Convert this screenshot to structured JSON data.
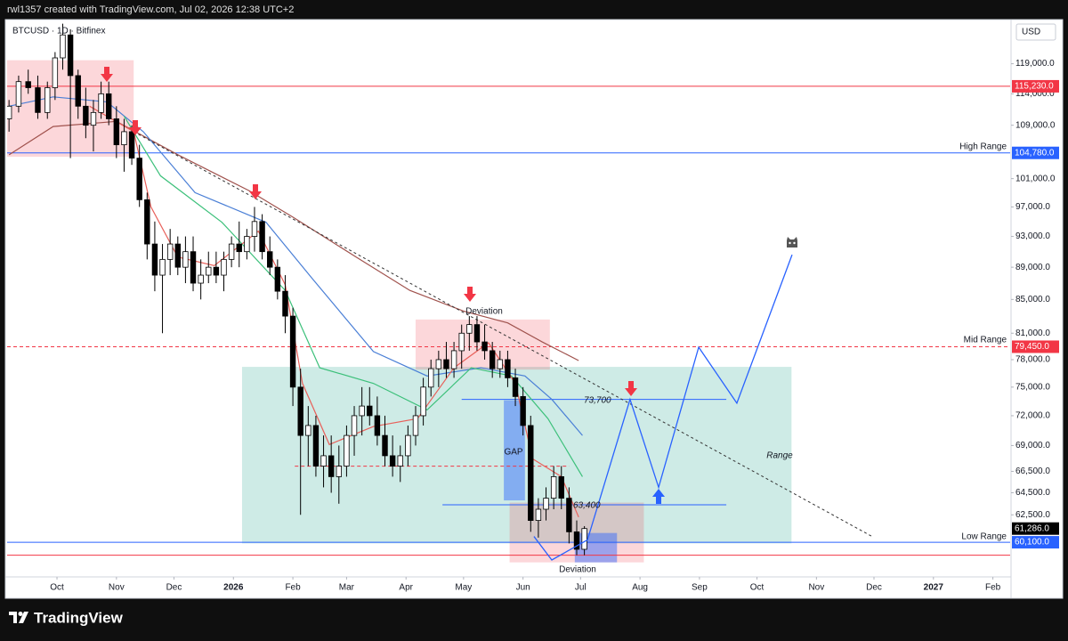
{
  "header": {
    "author_line": "rwl1357 created with TradingView.com, Jul 02, 2026 12:38 UTC+2"
  },
  "footer": {
    "brand": "TradingView"
  },
  "chart_data": {
    "type": "candlestick",
    "symbol": "BTCUSD · 1D · Bitfinex",
    "currency": "USD",
    "log_scale": true,
    "grid": false,
    "ylim": [
      57200,
      126100
    ],
    "yticks": [
      {
        "value": 62500,
        "label": "62,500.0"
      },
      {
        "value": 64500,
        "label": "64,500.0"
      },
      {
        "value": 66500,
        "label": "66,500.0"
      },
      {
        "value": 69000,
        "label": "69,000.0"
      },
      {
        "value": 72000,
        "label": "72,000.0"
      },
      {
        "value": 75000,
        "label": "75,000.0"
      },
      {
        "value": 78000,
        "label": "78,000.0"
      },
      {
        "value": 81000,
        "label": "81,000.0"
      },
      {
        "value": 85000,
        "label": "85,000.0"
      },
      {
        "value": 89000,
        "label": "89,000.0"
      },
      {
        "value": 93000,
        "label": "93,000.0"
      },
      {
        "value": 97000,
        "label": "97,000.0"
      },
      {
        "value": 101000,
        "label": "101,000.0"
      },
      {
        "value": 109000,
        "label": "109,000.0"
      },
      {
        "value": 114000,
        "label": "114,000.0"
      },
      {
        "value": 119000,
        "label": "119,000.0"
      }
    ],
    "xlim": [
      -26,
      497
    ],
    "xticks": [
      {
        "value": 0,
        "label": "Oct"
      },
      {
        "value": 31,
        "label": "Nov"
      },
      {
        "value": 61,
        "label": "Dec"
      },
      {
        "value": 92,
        "label": "2026"
      },
      {
        "value": 123,
        "label": "Feb"
      },
      {
        "value": 151,
        "label": "Mar"
      },
      {
        "value": 182,
        "label": "Apr"
      },
      {
        "value": 212,
        "label": "May"
      },
      {
        "value": 243,
        "label": "Jun"
      },
      {
        "value": 273,
        "label": "Jul"
      },
      {
        "value": 304,
        "label": "Aug"
      },
      {
        "value": 335,
        "label": "Sep"
      },
      {
        "value": 365,
        "label": "Oct"
      },
      {
        "value": 396,
        "label": "Nov"
      },
      {
        "value": 426,
        "label": "Dec"
      },
      {
        "value": 457,
        "label": "2027"
      },
      {
        "value": 488,
        "label": "Feb"
      }
    ],
    "x": [
      -25,
      -20,
      -15,
      -10,
      -5,
      -1,
      3,
      7,
      11,
      15,
      19,
      23,
      27,
      31,
      35,
      39,
      43,
      47,
      51,
      55,
      59,
      63,
      67,
      71,
      75,
      79,
      83,
      87,
      91,
      95,
      99,
      103,
      107,
      111,
      115,
      119,
      123,
      127,
      131,
      135,
      139,
      143,
      147,
      151,
      155,
      159,
      163,
      167,
      171,
      175,
      179,
      183,
      187,
      191,
      195,
      199,
      203,
      207,
      211,
      215,
      219,
      223,
      227,
      231,
      235,
      239,
      243,
      247,
      251,
      255,
      259,
      263,
      267,
      271,
      275
    ],
    "open": [
      110000,
      112000,
      116000,
      115000,
      111000,
      115000,
      120000,
      124000,
      117000,
      112000,
      109000,
      111000,
      114000,
      110000,
      106000,
      108000,
      104000,
      98000,
      92000,
      88000,
      90000,
      92000,
      89000,
      91000,
      87000,
      88000,
      89000,
      88000,
      90000,
      92000,
      91000,
      93000,
      95000,
      91000,
      89000,
      86000,
      83000,
      75000,
      70000,
      71000,
      67000,
      68000,
      66000,
      67000,
      70000,
      72000,
      73000,
      72000,
      70000,
      68000,
      67000,
      68000,
      70000,
      72000,
      75000,
      77000,
      78000,
      77000,
      79000,
      81000,
      82000,
      80000,
      79000,
      77000,
      78000,
      76000,
      74000,
      71000,
      62000,
      63000,
      64000,
      66000,
      64000,
      61000,
      59500
    ],
    "high": [
      113000,
      117000,
      118000,
      117000,
      116000,
      121000,
      126000,
      125000,
      118000,
      115000,
      113000,
      116000,
      116000,
      112000,
      110000,
      109000,
      106000,
      99000,
      95000,
      92000,
      94000,
      93000,
      93000,
      93000,
      90000,
      91000,
      91000,
      91000,
      93000,
      95000,
      94000,
      97000,
      96000,
      93000,
      90000,
      88000,
      84000,
      77000,
      73000,
      72000,
      70000,
      70000,
      69000,
      71000,
      73000,
      75000,
      75000,
      74000,
      72000,
      70000,
      69000,
      71000,
      73000,
      76000,
      78000,
      79000,
      80000,
      80000,
      82000,
      83000,
      83000,
      82000,
      80000,
      79000,
      79000,
      77000,
      75000,
      72000,
      64000,
      65000,
      67000,
      67000,
      65000,
      62000,
      61500
    ],
    "low": [
      108000,
      111000,
      114000,
      110000,
      110000,
      113000,
      118000,
      104000,
      110000,
      107000,
      105000,
      110000,
      109000,
      104000,
      102000,
      103000,
      97000,
      90000,
      86000,
      81000,
      88000,
      88000,
      87000,
      86000,
      85000,
      87000,
      87000,
      86000,
      89000,
      89000,
      90000,
      91000,
      90000,
      88000,
      85000,
      81000,
      73000,
      62500,
      67000,
      66000,
      65000,
      64500,
      63500,
      66000,
      68000,
      70000,
      71000,
      69000,
      67000,
      66000,
      65500,
      67000,
      69000,
      71000,
      74000,
      75000,
      76000,
      76000,
      77000,
      79000,
      79000,
      78000,
      76000,
      76000,
      75000,
      73000,
      70000,
      61000,
      60500,
      62000,
      63000,
      63000,
      60000,
      59000,
      59000
    ],
    "close": [
      112000,
      116000,
      115000,
      111000,
      115000,
      120000,
      124000,
      117000,
      112000,
      109000,
      111000,
      114000,
      110000,
      106000,
      108000,
      104000,
      98000,
      92000,
      88000,
      90000,
      92000,
      89000,
      91000,
      87000,
      88000,
      89000,
      88000,
      90000,
      92000,
      91000,
      93000,
      95000,
      91000,
      89000,
      86000,
      83000,
      75000,
      70000,
      71000,
      67000,
      68000,
      66000,
      67000,
      70000,
      72000,
      73000,
      72000,
      70000,
      68000,
      67000,
      68000,
      70000,
      72000,
      75000,
      77000,
      78000,
      77000,
      79000,
      81000,
      82000,
      80000,
      79000,
      77000,
      78000,
      76000,
      74000,
      71000,
      62000,
      63000,
      64000,
      66000,
      64000,
      61000,
      59500,
      61286
    ],
    "up_color": "#ffffff",
    "down_color": "#000000",
    "wick_color": "#000000",
    "last_price": {
      "value": 61286,
      "label": "61,286.0",
      "color": "#000000"
    },
    "moving_averages": [
      {
        "color": "#a0524d",
        "x": [
          -25,
          -2,
          31,
          63,
          100,
          123,
          156,
          184,
          212,
          235,
          253,
          272
        ],
        "values": [
          104500,
          108800,
          109600,
          104500,
          99300,
          95600,
          90300,
          86100,
          83600,
          82200,
          80000,
          77900
        ]
      },
      {
        "color": "#4a7fd6",
        "x": [
          -25,
          -2,
          26,
          45,
          72,
          109,
          133,
          165,
          193,
          221,
          244,
          258,
          274
        ],
        "values": [
          112000,
          113500,
          112700,
          108000,
          99000,
          94900,
          87600,
          78900,
          76200,
          77100,
          76200,
          73700,
          70000
        ]
      },
      {
        "color": "#3cc07a",
        "x": [
          35,
          54,
          86,
          119,
          137,
          165,
          193,
          216,
          237,
          256,
          274
        ],
        "values": [
          110400,
          101400,
          94900,
          86100,
          77100,
          75400,
          72600,
          77100,
          76200,
          71700,
          66000
        ]
      },
      {
        "color": "#e8605a",
        "x": [
          17,
          40,
          49,
          63,
          82,
          105,
          119,
          128,
          142,
          165,
          188,
          207,
          225,
          239,
          248,
          263,
          272
        ],
        "values": [
          112000,
          108000,
          97000,
          90300,
          89200,
          93700,
          86800,
          75400,
          69100,
          70900,
          71700,
          77100,
          79900,
          75400,
          67700,
          66000,
          62300
        ]
      }
    ],
    "levels": [
      {
        "value": 115230,
        "label": "115,230.0",
        "color": "#f23645"
      },
      {
        "value": 104780,
        "label": "104,780.0",
        "color": "#2962ff",
        "name": "High Range"
      },
      {
        "value": 79450,
        "label": "79,450.0",
        "color": "#f23645",
        "dashed": true,
        "name": "Mid Range"
      },
      {
        "value": 60100,
        "label": "60,100.0",
        "color": "#2962ff",
        "name": "Low Range"
      },
      {
        "value": 59000,
        "color": "#f23645"
      }
    ],
    "segments": [
      {
        "x": [
          211,
          349
        ],
        "value": 73700,
        "label": "73,700",
        "color": "#2962ff"
      },
      {
        "x": [
          201,
          349
        ],
        "value": 63400,
        "label": "63,400",
        "color": "#2962ff"
      },
      {
        "x": [
          124,
          267
        ],
        "value": 67000,
        "color": "#f23645",
        "dashed": true
      }
    ],
    "zones": [
      {
        "x": [
          -26,
          40
        ],
        "y": [
          104200,
          119600
        ],
        "color": "#f23645"
      },
      {
        "x": [
          96.5,
          383
        ],
        "y": [
          60000,
          77200
        ],
        "color": "#089981",
        "label": "Range"
      },
      {
        "x": [
          187,
          257
        ],
        "y": [
          76900,
          82600
        ],
        "color": "#f23645"
      },
      {
        "x": [
          233,
          244
        ],
        "y": [
          63800,
          73600
        ],
        "color": "#2962ff",
        "label": "GAP"
      },
      {
        "x": [
          236,
          306
        ],
        "y": [
          58400,
          63600
        ],
        "color": "#f23645"
      },
      {
        "x": [
          270,
          292
        ],
        "y": [
          58400,
          60900
        ],
        "color": "#2962ff"
      }
    ],
    "trendline": {
      "x": [
        40,
        425
      ],
      "values": [
        108000,
        60600
      ]
    },
    "projection": {
      "color": "#2962ff",
      "x": [
        248.7,
        258,
        276.6,
        298.8,
        313.7,
        334.6,
        354.5,
        383.3
      ],
      "values": [
        60600,
        58600,
        60300,
        73700,
        65000,
        79400,
        73300,
        90600
      ]
    },
    "annotations": [
      "Deviation",
      "Deviation"
    ]
  }
}
